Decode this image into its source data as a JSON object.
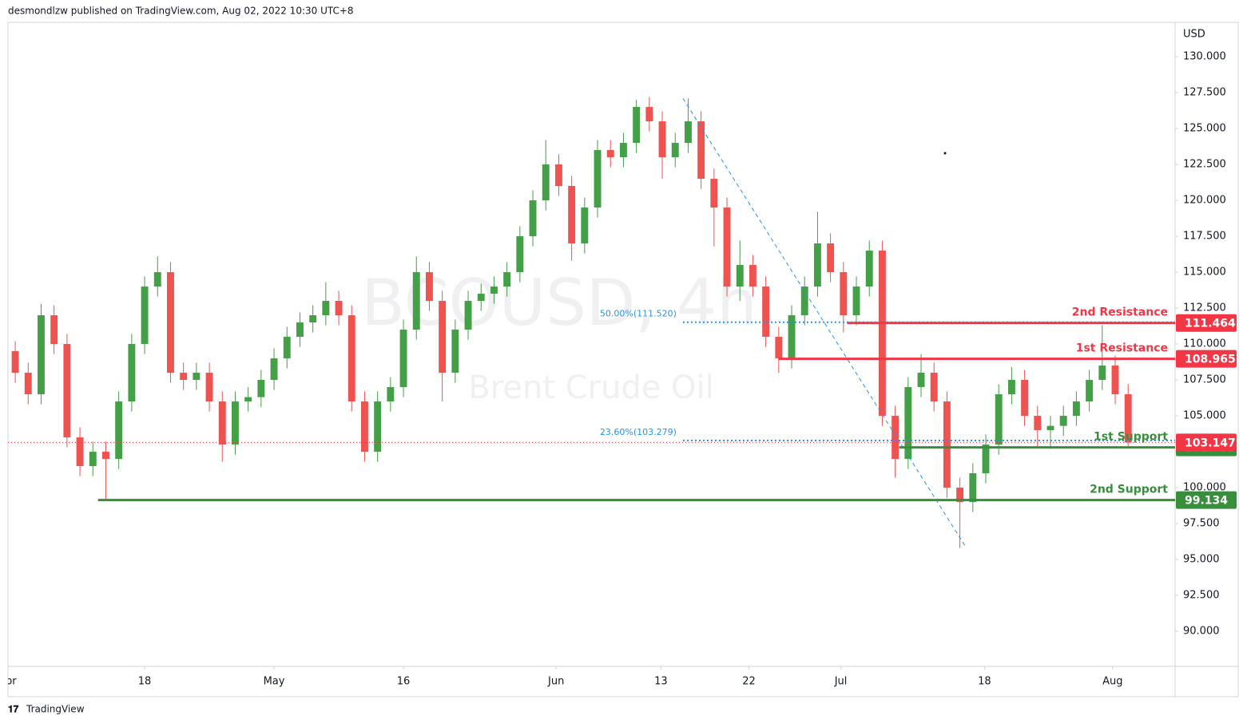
{
  "header": {
    "publisher": "desmondlzw published on TradingView.com, Aug 02, 2022 10:30 UTC+8",
    "brand": "TradingView"
  },
  "chart_data": {
    "type": "candlestick",
    "symbol": "BCOUSD, 4h",
    "description": "Brent Crude Oil",
    "currency": "USD",
    "up_color": "#43a047",
    "down_color": "#ef5350",
    "xlim": [
      -10.56,
      79.63
    ],
    "ylim": [
      87.56,
      132.39
    ],
    "xticks": [
      {
        "value": -10.6,
        "label": "Apr"
      },
      {
        "value": 0,
        "label": "18"
      },
      {
        "value": 10,
        "label": "May"
      },
      {
        "value": 20,
        "label": "16"
      },
      {
        "value": 31.8,
        "label": "Jun"
      },
      {
        "value": 39.9,
        "label": "13"
      },
      {
        "value": 46.7,
        "label": "22"
      },
      {
        "value": 53.8,
        "label": "Jul"
      },
      {
        "value": 64.9,
        "label": "18"
      },
      {
        "value": 74.8,
        "label": "Aug"
      }
    ],
    "yticks": [
      {
        "value": 90,
        "label": "90.000"
      },
      {
        "value": 92.5,
        "label": "92.500"
      },
      {
        "value": 95,
        "label": "95.000"
      },
      {
        "value": 97.5,
        "label": "97.500"
      },
      {
        "value": 100,
        "label": "100.000"
      },
      {
        "value": 102.5,
        "label": "102.500"
      },
      {
        "value": 105,
        "label": "105.000"
      },
      {
        "value": 107.5,
        "label": "107.500"
      },
      {
        "value": 110,
        "label": "110.000"
      },
      {
        "value": 112.5,
        "label": "112.500"
      },
      {
        "value": 115,
        "label": "115.000"
      },
      {
        "value": 117.5,
        "label": "117.500"
      },
      {
        "value": 120,
        "label": "120.000"
      },
      {
        "value": 122.5,
        "label": "122.500"
      },
      {
        "value": 125,
        "label": "125.000"
      },
      {
        "value": 127.5,
        "label": "127.500"
      },
      {
        "value": 130,
        "label": "130.000"
      }
    ],
    "x": [
      -10,
      -9,
      -8,
      -7,
      -6,
      -5,
      -4,
      -3,
      -2,
      -1,
      0,
      1,
      2,
      3,
      4,
      5,
      6,
      7,
      8,
      9,
      10,
      11,
      12,
      13,
      14,
      15,
      16,
      17,
      18,
      19,
      20,
      21,
      22,
      23,
      24,
      25,
      26,
      27,
      28,
      29,
      30,
      31,
      32,
      33,
      34,
      35,
      36,
      37,
      38,
      39,
      40,
      41,
      42,
      43,
      44,
      45,
      46,
      47,
      48,
      49,
      50,
      51,
      52,
      53,
      54,
      55,
      56,
      57,
      58,
      59,
      60,
      61,
      62,
      63,
      64,
      65,
      66,
      67,
      68,
      69,
      70,
      71,
      72,
      73,
      74,
      75,
      76
    ],
    "open": [
      109.5,
      108,
      106.5,
      112,
      110,
      103.5,
      101.5,
      102.5,
      102,
      106,
      110,
      114,
      115,
      108,
      107.5,
      108,
      106,
      103,
      106,
      106.3,
      107.5,
      109,
      110.5,
      111.5,
      112,
      113,
      112,
      106,
      102.5,
      106,
      107,
      111,
      115,
      113,
      108,
      111,
      113,
      113.5,
      114,
      115,
      117.5,
      120,
      122.5,
      121,
      117,
      119.5,
      123.5,
      123,
      124,
      126.5,
      125.5,
      123,
      124,
      125.5,
      121.5,
      119.5,
      114,
      115.5,
      114,
      110.5,
      109,
      112,
      114,
      117,
      115,
      112,
      114,
      116.5,
      105,
      102,
      107,
      108,
      106,
      100,
      99,
      101,
      103,
      106.5,
      107.5,
      105,
      104,
      104.3,
      105,
      106,
      107.5,
      108.5,
      106.5
    ],
    "high": [
      110.2,
      108.7,
      112.8,
      112.7,
      110.7,
      104.2,
      103.2,
      103.2,
      106.7,
      110.7,
      114.7,
      116.1,
      115.7,
      108.7,
      108.7,
      108.7,
      106.7,
      106.7,
      107,
      108.2,
      109.7,
      111.2,
      112.2,
      112.7,
      114.3,
      113.7,
      112.7,
      106.7,
      106.7,
      107.7,
      111.7,
      116.1,
      115.7,
      113.7,
      111.7,
      113.7,
      114.2,
      114.7,
      115.7,
      118.2,
      120.7,
      124.2,
      123.2,
      121.7,
      120.2,
      124.2,
      124.2,
      124.7,
      127,
      127.2,
      126.2,
      124.7,
      127.1,
      126.2,
      122.2,
      120.2,
      117.2,
      116.2,
      114.7,
      111.2,
      112.7,
      114.7,
      119.2,
      117.7,
      115.7,
      114.7,
      117.2,
      117.2,
      105.7,
      107.7,
      109.3,
      108.7,
      106.7,
      100.7,
      101.7,
      103.7,
      107.2,
      108.4,
      108.2,
      105.7,
      105,
      105.7,
      106.7,
      108.2,
      111.3,
      109.2,
      107.2
    ],
    "low": [
      107.3,
      105.8,
      105.8,
      109.3,
      102.8,
      100.8,
      100.8,
      99.1,
      101.3,
      105.3,
      109.3,
      113.3,
      107.3,
      106.8,
      106.8,
      105.3,
      101.8,
      102.3,
      105.3,
      105.6,
      106.8,
      108.3,
      109.8,
      110.8,
      111.3,
      111.3,
      105.3,
      101.8,
      101.8,
      105.3,
      106.3,
      110.3,
      112.3,
      106,
      107.3,
      110.3,
      112.3,
      112.8,
      113.3,
      114.3,
      116.8,
      119.3,
      120.3,
      115.8,
      116.3,
      118.8,
      122.3,
      122.3,
      123.3,
      124.8,
      121.5,
      122.3,
      123.3,
      120.8,
      116.8,
      113.3,
      113,
      113.3,
      109.8,
      108,
      108.3,
      111.3,
      113.3,
      114.3,
      110.8,
      111.3,
      113.3,
      104.3,
      100.7,
      101.3,
      106.3,
      105.3,
      99.3,
      95.8,
      98.3,
      100.3,
      102.3,
      105.8,
      104.3,
      102.8,
      102.7,
      103.6,
      104.3,
      105.3,
      106.8,
      105.8,
      102.9
    ],
    "close": [
      108,
      106.5,
      112,
      110,
      103.5,
      101.5,
      102.5,
      102,
      106,
      110,
      114,
      115,
      108,
      107.5,
      108,
      106,
      103,
      106,
      106.3,
      107.5,
      109,
      110.5,
      111.5,
      112,
      113,
      112,
      106,
      102.5,
      106,
      107,
      111,
      115,
      113,
      108,
      111,
      113,
      113.5,
      114,
      115,
      117.5,
      120,
      122.5,
      121,
      117,
      119.5,
      123.5,
      123,
      124,
      126.5,
      125.5,
      123,
      124,
      125.5,
      121.5,
      119.5,
      114,
      115.5,
      114,
      110.5,
      109,
      112,
      114,
      117,
      115,
      112,
      114,
      116.5,
      105,
      102,
      107,
      108,
      106,
      100,
      99,
      101,
      103,
      106.5,
      107.5,
      105,
      104,
      104.3,
      105,
      106,
      107.5,
      108.5,
      106.5,
      103.15
    ],
    "last_price": {
      "value": 103.147,
      "color": "#f23645"
    },
    "trend_line": {
      "x": [
        41.6,
        63.5
      ],
      "y": [
        127.1,
        95.8
      ],
      "color": "#2196f3"
    },
    "fib_levels": [
      {
        "label": "50.00%(111.520)",
        "value": 111.52,
        "x_start": 41.6
      },
      {
        "label": "23.60%(103.279)",
        "value": 103.279,
        "x_start": 41.6
      }
    ],
    "levels": [
      {
        "name": "2nd Resistance",
        "value": 111.464,
        "color": "#f23645",
        "x_start": 54.3
      },
      {
        "name": "1st Resistance",
        "value": 108.965,
        "color": "#f23645",
        "x_start": 49
      },
      {
        "name": "1st Support",
        "value": 102.799,
        "color": "#388e3c",
        "x_start": 58.3
      },
      {
        "name": "2nd Support",
        "value": 99.134,
        "color": "#388e3c",
        "x_start": -3.6
      }
    ]
  }
}
